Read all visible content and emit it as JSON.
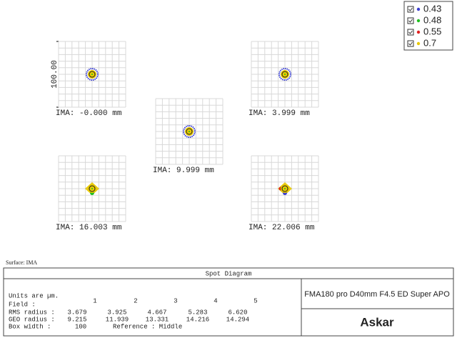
{
  "legend": [
    {
      "label": "0.43",
      "color": "#3a3fd0"
    },
    {
      "label": "0.48",
      "color": "#20c020"
    },
    {
      "label": "0.55",
      "color": "#e02020"
    },
    {
      "label": "0.7",
      "color": "#e8c800"
    }
  ],
  "scale_label": "100.00",
  "fields": [
    "IMA: -0.000 mm",
    "IMA: 3.999 mm",
    "IMA: 9.999 mm",
    "IMA: 16.003 mm",
    "IMA: 22.006 mm"
  ],
  "surface": "Surface: IMA",
  "panel": {
    "title": "Spot Diagram",
    "units": "Units are µm.",
    "field_label": "Field      :",
    "field_numbers": [
      "1",
      "2",
      "3",
      "4",
      "5"
    ],
    "rows": [
      {
        "label": "RMS radius :",
        "values": [
          "3.679",
          "3.925",
          "4.667",
          "5.283",
          "6.620"
        ]
      },
      {
        "label": "GEO radius :",
        "values": [
          "9.215",
          "11.939",
          "13.331",
          "14.216",
          "14.294"
        ]
      }
    ],
    "box_label": "Box width  :",
    "box_value": "100",
    "reference": "Reference  : Middle",
    "lens": "FMA180 pro D40mm F4.5 ED Super APO",
    "brand": "Askar"
  }
}
